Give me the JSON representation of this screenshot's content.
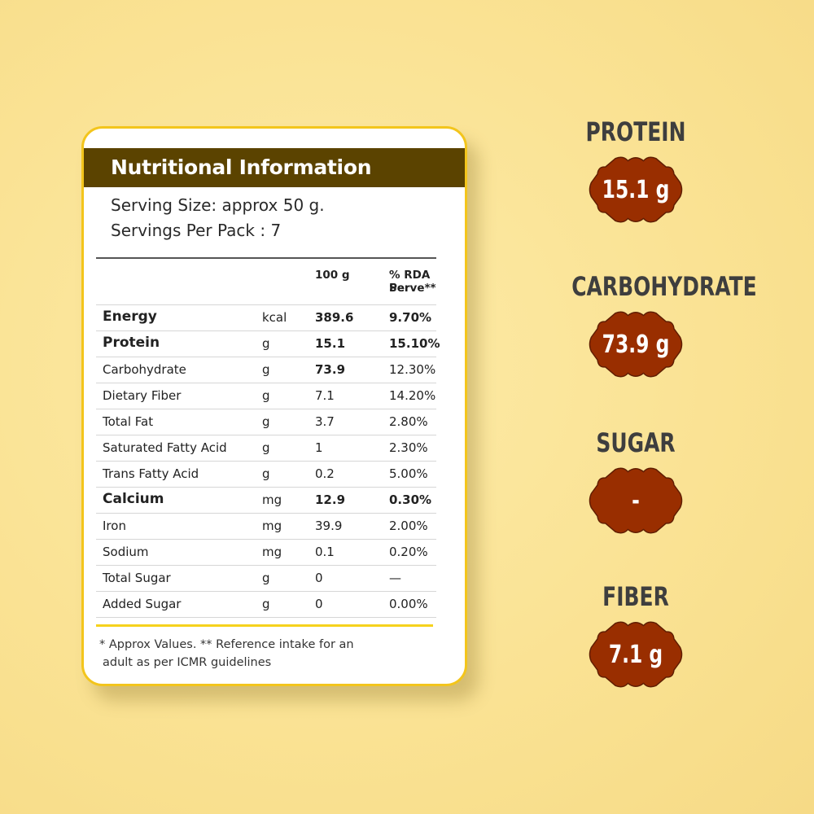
{
  "card": {
    "title": "Nutritional Information",
    "serving_size": "Serving Size: approx 50 g.",
    "servings_per_pack": "Servings Per Pack : 7",
    "table": {
      "headers": {
        "per100": "100 g",
        "rda_line1": "% RDA Per",
        "rda_line2": "Serve**"
      },
      "rows": [
        {
          "name": "Energy",
          "unit": "kcal",
          "per100": "389.6",
          "rda": "9.70%",
          "bold": true
        },
        {
          "name": "Protein",
          "unit": "g",
          "per100": "15.1",
          "rda": "15.10%",
          "bold": true
        },
        {
          "name": "Carbohydrate",
          "unit": "g",
          "per100": "73.9",
          "rda": "12.30%",
          "bold": false
        },
        {
          "name": "Dietary Fiber",
          "unit": "g",
          "per100": "7.1",
          "rda": "14.20%",
          "bold": false
        },
        {
          "name": "Total Fat",
          "unit": "g",
          "per100": "3.7",
          "rda": "2.80%",
          "bold": false
        },
        {
          "name": "Saturated Fatty Acid",
          "unit": "g",
          "per100": "1",
          "rda": "2.30%",
          "bold": false
        },
        {
          "name": "Trans Fatty Acid",
          "unit": "g",
          "per100": "0.2",
          "rda": "5.00%",
          "bold": false
        },
        {
          "name": "Calcium",
          "unit": "mg",
          "per100": "12.9",
          "rda": "0.30%",
          "bold": true
        },
        {
          "name": "Iron",
          "unit": "mg",
          "per100": "39.9",
          "rda": "2.00%",
          "bold": false
        },
        {
          "name": "Sodium",
          "unit": "mg",
          "per100": "0.1",
          "rda": "0.20%",
          "bold": false
        },
        {
          "name": "Total Sugar",
          "unit": "g",
          "per100": "0",
          "rda": "—",
          "bold": false
        },
        {
          "name": "Added Sugar",
          "unit": "g",
          "per100": "0",
          "rda": "0.00%",
          "bold": false
        }
      ]
    },
    "footnote_line1": "* Approx Values. ** Reference intake for an",
    "footnote_line2": "adult as per ICMR guidelines"
  },
  "highlights": [
    {
      "label": "PROTEIN",
      "value": "15.1 g"
    },
    {
      "label": "CARBOHYDRATE",
      "value": "73.9 g"
    },
    {
      "label": "SUGAR",
      "value": "-"
    },
    {
      "label": "FIBER",
      "value": "7.1 g"
    }
  ],
  "colors": {
    "background": "#fbe69a",
    "title_bar": "#5b4300",
    "card_border": "#f3c51c",
    "badge": "#992e00",
    "badge_outline": "#5f1d00",
    "accent_rule": "#f6d21d"
  }
}
